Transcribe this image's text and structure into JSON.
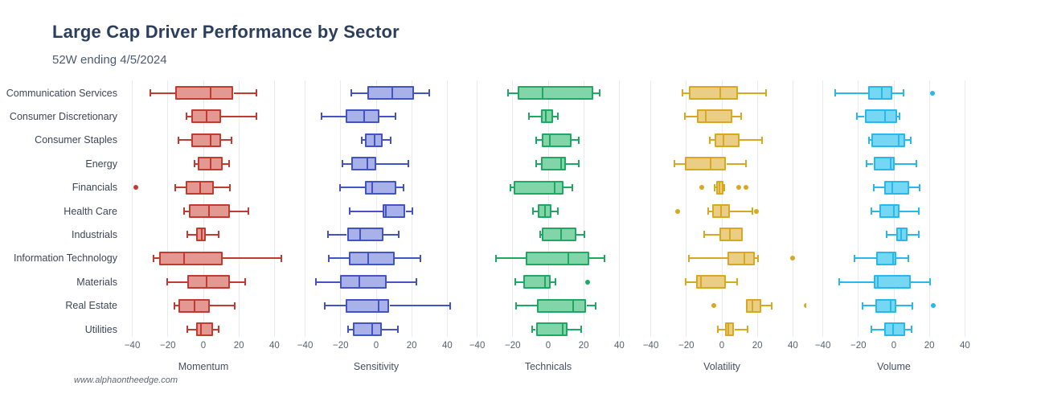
{
  "header": {
    "title": "Large Cap Driver Performance by Sector",
    "subtitle": "52W ending 4/5/2024"
  },
  "watermark": "www.alphaontheedge.com",
  "chart_data": {
    "type": "boxplot",
    "orientation": "horizontal",
    "grid": true,
    "sectors": [
      "Communication Services",
      "Consumer Discretionary",
      "Consumer Staples",
      "Energy",
      "Financials",
      "Health Care",
      "Industrials",
      "Information Technology",
      "Materials",
      "Real Estate",
      "Utilities"
    ],
    "axis": {
      "ticks": [
        -40,
        -20,
        0,
        20,
        40
      ],
      "range": [
        -47,
        47
      ]
    },
    "box_format": [
      "whisker_low",
      "q1",
      "median",
      "q3",
      "whisker_high"
    ],
    "panels": [
      {
        "label": "Momentum",
        "stroke": "#c23b33",
        "fill": "#e39992",
        "boxes": [
          [
            -30,
            -16,
            4,
            17,
            30
          ],
          [
            -9.5,
            -7,
            2,
            10,
            30
          ],
          [
            -14,
            -7,
            4,
            10,
            16
          ],
          [
            -5,
            -3,
            4,
            11,
            14.5
          ],
          [
            -16,
            -10,
            -2,
            6,
            15
          ],
          [
            -11,
            -8,
            3,
            15,
            25.5
          ],
          [
            -9,
            -4,
            -1,
            1.5,
            8.5
          ],
          [
            -28,
            -25,
            -11,
            11,
            44
          ],
          [
            -20.5,
            -9,
            2,
            15,
            23.5
          ],
          [
            -16.5,
            -14,
            -5,
            3.5,
            17.5
          ],
          [
            -9,
            -4,
            -1.5,
            5.5,
            8.5
          ]
        ],
        "outliers": [
          [],
          [],
          [],
          [],
          [
            -38
          ],
          [],
          [],
          [],
          [],
          [],
          []
        ]
      },
      {
        "label": "Sensitivity",
        "stroke": "#4353c4",
        "fill": "#a9b2e8",
        "boxes": [
          [
            -14,
            -5,
            9,
            21,
            30
          ],
          [
            -31,
            -17,
            -7,
            2,
            11
          ],
          [
            -8,
            -6.5,
            -1,
            3.5,
            8
          ],
          [
            -19,
            -14,
            -5,
            0,
            18
          ],
          [
            -20.5,
            -6.5,
            -2.5,
            11.5,
            15.5
          ],
          [
            -15,
            3.5,
            5.5,
            16.5,
            20.5
          ],
          [
            -27,
            -16.5,
            -9,
            4,
            12.5
          ],
          [
            -26.5,
            -15.5,
            -4.5,
            10.5,
            25
          ],
          [
            -34,
            -20.5,
            -9.5,
            6,
            22.5
          ],
          [
            -29,
            -17,
            1.5,
            7.5,
            41.5
          ],
          [
            -16,
            -13,
            -2.5,
            3,
            12
          ]
        ],
        "outliers": [
          [],
          [],
          [],
          [],
          [],
          [],
          [],
          [],
          [],
          [],
          []
        ]
      },
      {
        "label": "Technicals",
        "stroke": "#1fa864",
        "fill": "#82d5a8",
        "boxes": [
          [
            -22.5,
            -17,
            -3,
            25.5,
            29
          ],
          [
            -11,
            -4,
            -1.5,
            2.5,
            5.5
          ],
          [
            -7,
            -3.5,
            1,
            13,
            17
          ],
          [
            -7,
            -4,
            7,
            10,
            17
          ],
          [
            -21.5,
            -19.5,
            3.5,
            8.5,
            13.5
          ],
          [
            -8.5,
            -6,
            -2,
            2,
            5.5
          ],
          [
            -4.5,
            -3.5,
            7,
            16,
            20.5
          ],
          [
            -29.5,
            -12.5,
            11.5,
            23,
            31.5
          ],
          [
            -18.5,
            -14,
            -2,
            1.5,
            4
          ],
          [
            -18,
            -6.5,
            14,
            21.5,
            26.5
          ],
          [
            -9,
            -7,
            8,
            11,
            18.5
          ]
        ],
        "outliers": [
          [],
          [],
          [],
          [],
          [],
          [],
          [],
          [],
          [
            22
          ],
          [],
          []
        ]
      },
      {
        "label": "Volatility",
        "stroke": "#d8a821",
        "fill": "#eace85",
        "boxes": [
          [
            -22,
            -18.5,
            -1,
            9,
            25
          ],
          [
            -21,
            -14,
            -9,
            6,
            11
          ],
          [
            -7,
            -4,
            1,
            10,
            22.5
          ],
          [
            -26.5,
            -21,
            -6.5,
            2.5,
            13.5
          ],
          [
            -4,
            -3,
            -1.5,
            1,
            1.5
          ],
          [
            -7.5,
            -5.5,
            -0.5,
            4.5,
            17
          ],
          [
            -10,
            -1.5,
            4.5,
            12,
            12
          ],
          [
            -18.5,
            3,
            12.5,
            18.5,
            20.5
          ],
          [
            -20.5,
            -14.5,
            -12,
            2,
            8.5
          ],
          [
            13.5,
            13.5,
            17,
            22,
            28
          ],
          [
            -2.5,
            2,
            3.5,
            7,
            14.5
          ]
        ],
        "outliers": [
          [],
          [],
          [],
          [],
          [
            -11.5,
            9.5,
            13.5
          ],
          [
            -25,
            19.5
          ],
          [],
          [
            40
          ],
          [],
          [
            -4.5,
            47.5
          ],
          []
        ]
      },
      {
        "label": "Volume",
        "stroke": "#29b8ea",
        "fill": "#76d7f5",
        "boxes": [
          [
            -33,
            -14.5,
            -7,
            -1,
            5.5
          ],
          [
            -21,
            -16.5,
            -5,
            2,
            3
          ],
          [
            -14,
            -12.5,
            2.5,
            6.5,
            9.5
          ],
          [
            -15.5,
            -11.5,
            -2,
            0.5,
            12.5
          ],
          [
            -11.5,
            -5.5,
            -1,
            8.5,
            14.5
          ],
          [
            -12.5,
            -8,
            0,
            3,
            14
          ],
          [
            -4,
            1.5,
            4,
            7.5,
            14
          ],
          [
            -22,
            -10,
            -0.5,
            1.5,
            8
          ],
          [
            -31,
            -11.5,
            -9,
            9.5,
            20.5
          ],
          [
            -17.5,
            -10.5,
            -2,
            1.5,
            10.5
          ],
          [
            -12.5,
            -5.5,
            -0.5,
            6.5,
            10
          ]
        ],
        "outliers": [
          [
            21.5
          ],
          [],
          [],
          [],
          [],
          [],
          [],
          [],
          [],
          [
            22
          ],
          []
        ]
      }
    ]
  }
}
